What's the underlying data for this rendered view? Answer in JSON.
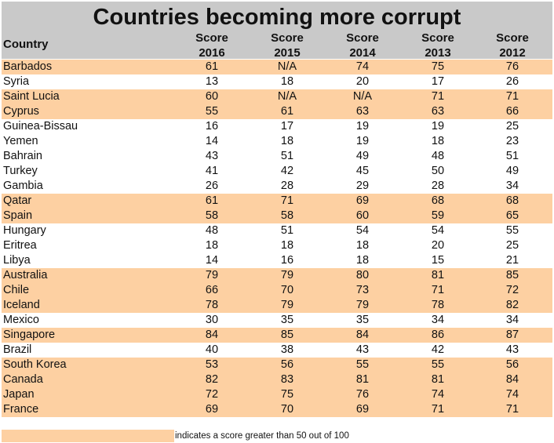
{
  "title": "Countries becoming more corrupt",
  "columns": {
    "country": "Country",
    "scores": [
      {
        "label": "Score",
        "year": "2016"
      },
      {
        "label": "Score",
        "year": "2015"
      },
      {
        "label": "Score",
        "year": "2014"
      },
      {
        "label": "Score",
        "year": "2013"
      },
      {
        "label": "Score",
        "year": "2012"
      }
    ]
  },
  "highlight_color": "#fdd0a2",
  "header_color": "#c9c9c9",
  "rows": [
    {
      "country": "Barbados",
      "scores": [
        "61",
        "N/A",
        "74",
        "75",
        "76"
      ],
      "highlight": true
    },
    {
      "country": "Syria",
      "scores": [
        "13",
        "18",
        "20",
        "17",
        "26"
      ],
      "highlight": false
    },
    {
      "country": "Saint Lucia",
      "scores": [
        "60",
        "N/A",
        "N/A",
        "71",
        "71"
      ],
      "highlight": true
    },
    {
      "country": "Cyprus",
      "scores": [
        "55",
        "61",
        "63",
        "63",
        "66"
      ],
      "highlight": true
    },
    {
      "country": "Guinea-Bissau",
      "scores": [
        "16",
        "17",
        "19",
        "19",
        "25"
      ],
      "highlight": false
    },
    {
      "country": "Yemen",
      "scores": [
        "14",
        "18",
        "19",
        "18",
        "23"
      ],
      "highlight": false
    },
    {
      "country": "Bahrain",
      "scores": [
        "43",
        "51",
        "49",
        "48",
        "51"
      ],
      "highlight": false
    },
    {
      "country": "Turkey",
      "scores": [
        "41",
        "42",
        "45",
        "50",
        "49"
      ],
      "highlight": false
    },
    {
      "country": "Gambia",
      "scores": [
        "26",
        "28",
        "29",
        "28",
        "34"
      ],
      "highlight": false
    },
    {
      "country": "Qatar",
      "scores": [
        "61",
        "71",
        "69",
        "68",
        "68"
      ],
      "highlight": true
    },
    {
      "country": "Spain",
      "scores": [
        "58",
        "58",
        "60",
        "59",
        "65"
      ],
      "highlight": true
    },
    {
      "country": "Hungary",
      "scores": [
        "48",
        "51",
        "54",
        "54",
        "55"
      ],
      "highlight": false
    },
    {
      "country": "Eritrea",
      "scores": [
        "18",
        "18",
        "18",
        "20",
        "25"
      ],
      "highlight": false
    },
    {
      "country": "Libya",
      "scores": [
        "14",
        "16",
        "18",
        "15",
        "21"
      ],
      "highlight": false
    },
    {
      "country": "Australia",
      "scores": [
        "79",
        "79",
        "80",
        "81",
        "85"
      ],
      "highlight": true
    },
    {
      "country": "Chile",
      "scores": [
        "66",
        "70",
        "73",
        "71",
        "72"
      ],
      "highlight": true
    },
    {
      "country": "Iceland",
      "scores": [
        "78",
        "79",
        "79",
        "78",
        "82"
      ],
      "highlight": true
    },
    {
      "country": "Mexico",
      "scores": [
        "30",
        "35",
        "35",
        "34",
        "34"
      ],
      "highlight": false
    },
    {
      "country": "Singapore",
      "scores": [
        "84",
        "85",
        "84",
        "86",
        "87"
      ],
      "highlight": true
    },
    {
      "country": "Brazil",
      "scores": [
        "40",
        "38",
        "43",
        "42",
        "43"
      ],
      "highlight": false
    },
    {
      "country": "South Korea",
      "scores": [
        "53",
        "56",
        "55",
        "55",
        "56"
      ],
      "highlight": true
    },
    {
      "country": "Canada",
      "scores": [
        "82",
        "83",
        "81",
        "81",
        "84"
      ],
      "highlight": true
    },
    {
      "country": "Japan",
      "scores": [
        "72",
        "75",
        "76",
        "74",
        "74"
      ],
      "highlight": true
    },
    {
      "country": "France",
      "scores": [
        "69",
        "70",
        "69",
        "71",
        "71"
      ],
      "highlight": true
    }
  ],
  "legend": {
    "text": "indicates a score greater than 50 out of 100"
  }
}
